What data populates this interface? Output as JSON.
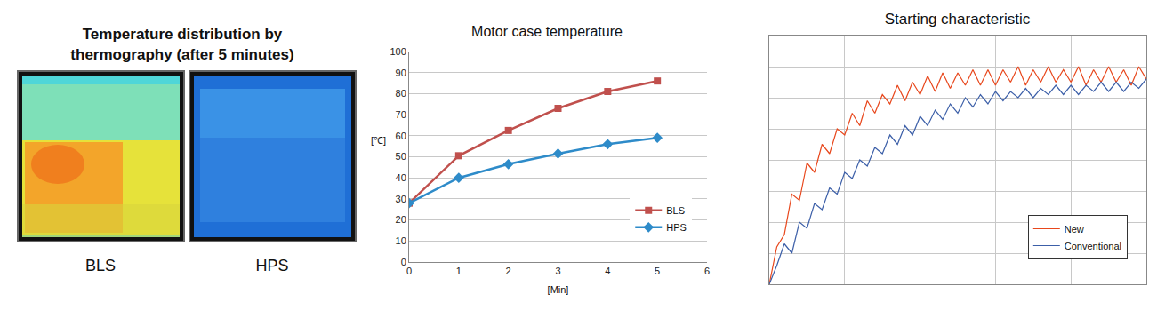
{
  "thermography": {
    "title": "Temperature distribution by\nthermography (after 5 minutes)",
    "panels": [
      {
        "label": "BLS"
      },
      {
        "label": "HPS"
      }
    ]
  },
  "chart_data": [
    {
      "type": "line",
      "title": "Motor case temperature",
      "x_label": "[Min]",
      "y_label": "[℃]",
      "x": [
        0,
        1,
        2,
        3,
        4,
        5
      ],
      "series": [
        {
          "name": "BLS",
          "color": "#c0504d",
          "marker": "square",
          "line_style": "solid",
          "values": [
            28,
            50.5,
            62.5,
            73,
            81,
            86
          ]
        },
        {
          "name": "HPS",
          "color": "#2e8bc9",
          "marker": "diamond",
          "line_style": "solid",
          "values": [
            28,
            40,
            46.5,
            51.5,
            56,
            59
          ]
        }
      ],
      "xlim": [
        0,
        6
      ],
      "xticks": [
        0,
        1,
        2,
        3,
        4,
        5,
        6
      ],
      "ylim": [
        0,
        100
      ],
      "yticks": [
        0,
        10,
        20,
        30,
        40,
        50,
        60,
        70,
        80,
        90,
        100
      ],
      "grid": "y",
      "legend": "lower right"
    },
    {
      "type": "line",
      "title": "Starting characteristic",
      "x": [
        0,
        0.1,
        0.2,
        0.3,
        0.4,
        0.5,
        0.6,
        0.7,
        0.8,
        0.9,
        1,
        1.1,
        1.2,
        1.3,
        1.4,
        1.5,
        1.6,
        1.7,
        1.8,
        1.9,
        2,
        2.1,
        2.2,
        2.3,
        2.4,
        2.5,
        2.6,
        2.7,
        2.8,
        2.9,
        3,
        3.1,
        3.2,
        3.3,
        3.4,
        3.5,
        3.6,
        3.7,
        3.8,
        3.9,
        4,
        4.1,
        4.2,
        4.3,
        4.4,
        4.5,
        4.6,
        4.7,
        4.8,
        4.9,
        5
      ],
      "series": [
        {
          "name": "New",
          "color": "#e8471c",
          "line_style": "solid",
          "values": [
            0,
            1.2,
            1.6,
            2.9,
            2.7,
            3.9,
            3.6,
            4.5,
            4.2,
            5.0,
            4.8,
            5.5,
            5.1,
            5.9,
            5.5,
            6.1,
            5.8,
            6.4,
            5.9,
            6.5,
            6.1,
            6.7,
            6.2,
            6.8,
            6.3,
            6.8,
            6.4,
            6.9,
            6.4,
            6.9,
            6.4,
            6.9,
            6.5,
            7.0,
            6.4,
            6.9,
            6.5,
            7.0,
            6.5,
            6.9,
            6.5,
            7.0,
            6.4,
            6.9,
            6.5,
            7.0,
            6.5,
            6.9,
            6.4,
            7.0,
            6.6
          ]
        },
        {
          "name": "Conventional",
          "color": "#3c5fa8",
          "line_style": "solid",
          "values": [
            0,
            0.6,
            1.3,
            1.0,
            2.0,
            1.8,
            2.6,
            2.4,
            3.1,
            2.9,
            3.6,
            3.4,
            4.0,
            3.8,
            4.4,
            4.2,
            4.8,
            4.5,
            5.1,
            4.8,
            5.4,
            5.1,
            5.6,
            5.3,
            5.8,
            5.5,
            6.0,
            5.7,
            6.1,
            5.8,
            6.2,
            5.9,
            6.2,
            6.0,
            6.3,
            6.0,
            6.3,
            6.1,
            6.4,
            6.1,
            6.4,
            6.1,
            6.4,
            6.2,
            6.5,
            6.2,
            6.5,
            6.2,
            6.5,
            6.3,
            6.6
          ]
        }
      ],
      "xlim": [
        0,
        5
      ],
      "xticks": [
        0,
        1,
        2,
        3,
        4,
        5
      ],
      "ylim": [
        0,
        8
      ],
      "yticks": [
        0,
        1,
        2,
        3,
        4,
        5,
        6,
        7,
        8
      ],
      "grid": true,
      "tick_labels": false,
      "legend": "lower right"
    }
  ]
}
